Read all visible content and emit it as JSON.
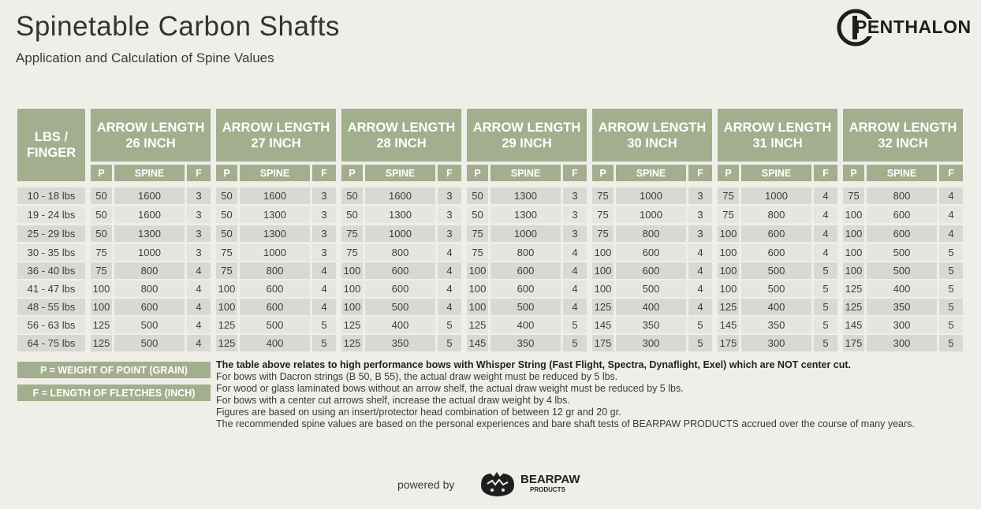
{
  "header": {
    "title": "Spinetable Carbon Shafts",
    "subtitle": "Application and Calculation of Spine Values"
  },
  "brand": {
    "logo_text": "PENTHALON",
    "logo_icon": "penthalon-c-logo"
  },
  "table": {
    "corner_label_line1": "LBS /",
    "corner_label_line2": "FINGER",
    "group_label": "ARROW LENGTH",
    "lengths": [
      "26 INCH",
      "27 INCH",
      "28 INCH",
      "29 INCH",
      "30 INCH",
      "31 INCH",
      "32 INCH"
    ],
    "sub_headers": [
      "P",
      "SPINE",
      "F"
    ],
    "rows": [
      {
        "lbs": "10 - 18 lbs",
        "values": [
          [
            50,
            1600,
            3
          ],
          [
            50,
            1600,
            3
          ],
          [
            50,
            1600,
            3
          ],
          [
            50,
            1300,
            3
          ],
          [
            75,
            1000,
            3
          ],
          [
            75,
            1000,
            4
          ],
          [
            75,
            800,
            4
          ]
        ]
      },
      {
        "lbs": "19 - 24 lbs",
        "values": [
          [
            50,
            1600,
            3
          ],
          [
            50,
            1300,
            3
          ],
          [
            50,
            1300,
            3
          ],
          [
            50,
            1300,
            3
          ],
          [
            75,
            1000,
            3
          ],
          [
            75,
            800,
            4
          ],
          [
            100,
            600,
            4
          ]
        ]
      },
      {
        "lbs": "25 - 29 lbs",
        "values": [
          [
            50,
            1300,
            3
          ],
          [
            50,
            1300,
            3
          ],
          [
            75,
            1000,
            3
          ],
          [
            75,
            1000,
            3
          ],
          [
            75,
            800,
            3
          ],
          [
            100,
            600,
            4
          ],
          [
            100,
            600,
            4
          ]
        ]
      },
      {
        "lbs": "30 - 35 lbs",
        "values": [
          [
            75,
            1000,
            3
          ],
          [
            75,
            1000,
            3
          ],
          [
            75,
            800,
            4
          ],
          [
            75,
            800,
            4
          ],
          [
            100,
            600,
            4
          ],
          [
            100,
            600,
            4
          ],
          [
            100,
            500,
            5
          ]
        ]
      },
      {
        "lbs": "36 - 40 lbs",
        "values": [
          [
            75,
            800,
            4
          ],
          [
            75,
            800,
            4
          ],
          [
            100,
            600,
            4
          ],
          [
            100,
            600,
            4
          ],
          [
            100,
            600,
            4
          ],
          [
            100,
            500,
            5
          ],
          [
            100,
            500,
            5
          ]
        ]
      },
      {
        "lbs": "41 - 47 lbs",
        "values": [
          [
            100,
            800,
            4
          ],
          [
            100,
            600,
            4
          ],
          [
            100,
            600,
            4
          ],
          [
            100,
            600,
            4
          ],
          [
            100,
            500,
            4
          ],
          [
            100,
            500,
            5
          ],
          [
            125,
            400,
            5
          ]
        ]
      },
      {
        "lbs": "48 - 55 lbs",
        "values": [
          [
            100,
            600,
            4
          ],
          [
            100,
            600,
            4
          ],
          [
            100,
            500,
            4
          ],
          [
            100,
            500,
            4
          ],
          [
            125,
            400,
            4
          ],
          [
            125,
            400,
            5
          ],
          [
            125,
            350,
            5
          ]
        ]
      },
      {
        "lbs": "56 - 63 lbs",
        "values": [
          [
            125,
            500,
            4
          ],
          [
            125,
            500,
            5
          ],
          [
            125,
            400,
            5
          ],
          [
            125,
            400,
            5
          ],
          [
            145,
            350,
            5
          ],
          [
            145,
            350,
            5
          ],
          [
            145,
            300,
            5
          ]
        ]
      },
      {
        "lbs": "64 - 75 lbs",
        "values": [
          [
            125,
            500,
            4
          ],
          [
            125,
            400,
            5
          ],
          [
            125,
            350,
            5
          ],
          [
            145,
            350,
            5
          ],
          [
            175,
            300,
            5
          ],
          [
            175,
            300,
            5
          ],
          [
            175,
            300,
            5
          ]
        ]
      }
    ]
  },
  "legend": {
    "p": "P = WEIGHT OF POINT (GRAIN)",
    "f": "F = LENGTH OF FLETCHES (INCH)"
  },
  "notes": {
    "bold": "The table above relates to high performance bows with Whisper String (Fast Flight, Spectra, Dynaflight, Exel) which are NOT center cut.",
    "lines": [
      "For bows with Dacron strings (B 50, B 55), the actual draw weight must be reduced by 5 lbs.",
      "For wood or glass laminated bows without an arrow shelf, the actual draw weight must be reduced by 5 lbs.",
      "For bows with a center cut arrows shelf, increase the actual draw weight by 4 lbs.",
      "Figures are based on using an insert/protector head combination of between 12 gr and 20 gr.",
      "The recommended spine values are based on the personal experiences and bare shaft tests of BEARPAW PRODUCTS accrued over the course of many years."
    ]
  },
  "footer": {
    "powered_by": "powered by",
    "bearpaw_name": "BEARPAW",
    "bearpaw_sub": "PRODUCTS",
    "bearpaw_icon": "bearpaw-bear-logo"
  },
  "colors": {
    "header_green": "#a3ae8e",
    "row_dark": "#d9d9d3",
    "row_light": "#e6e6e1",
    "background": "#efeee9"
  }
}
